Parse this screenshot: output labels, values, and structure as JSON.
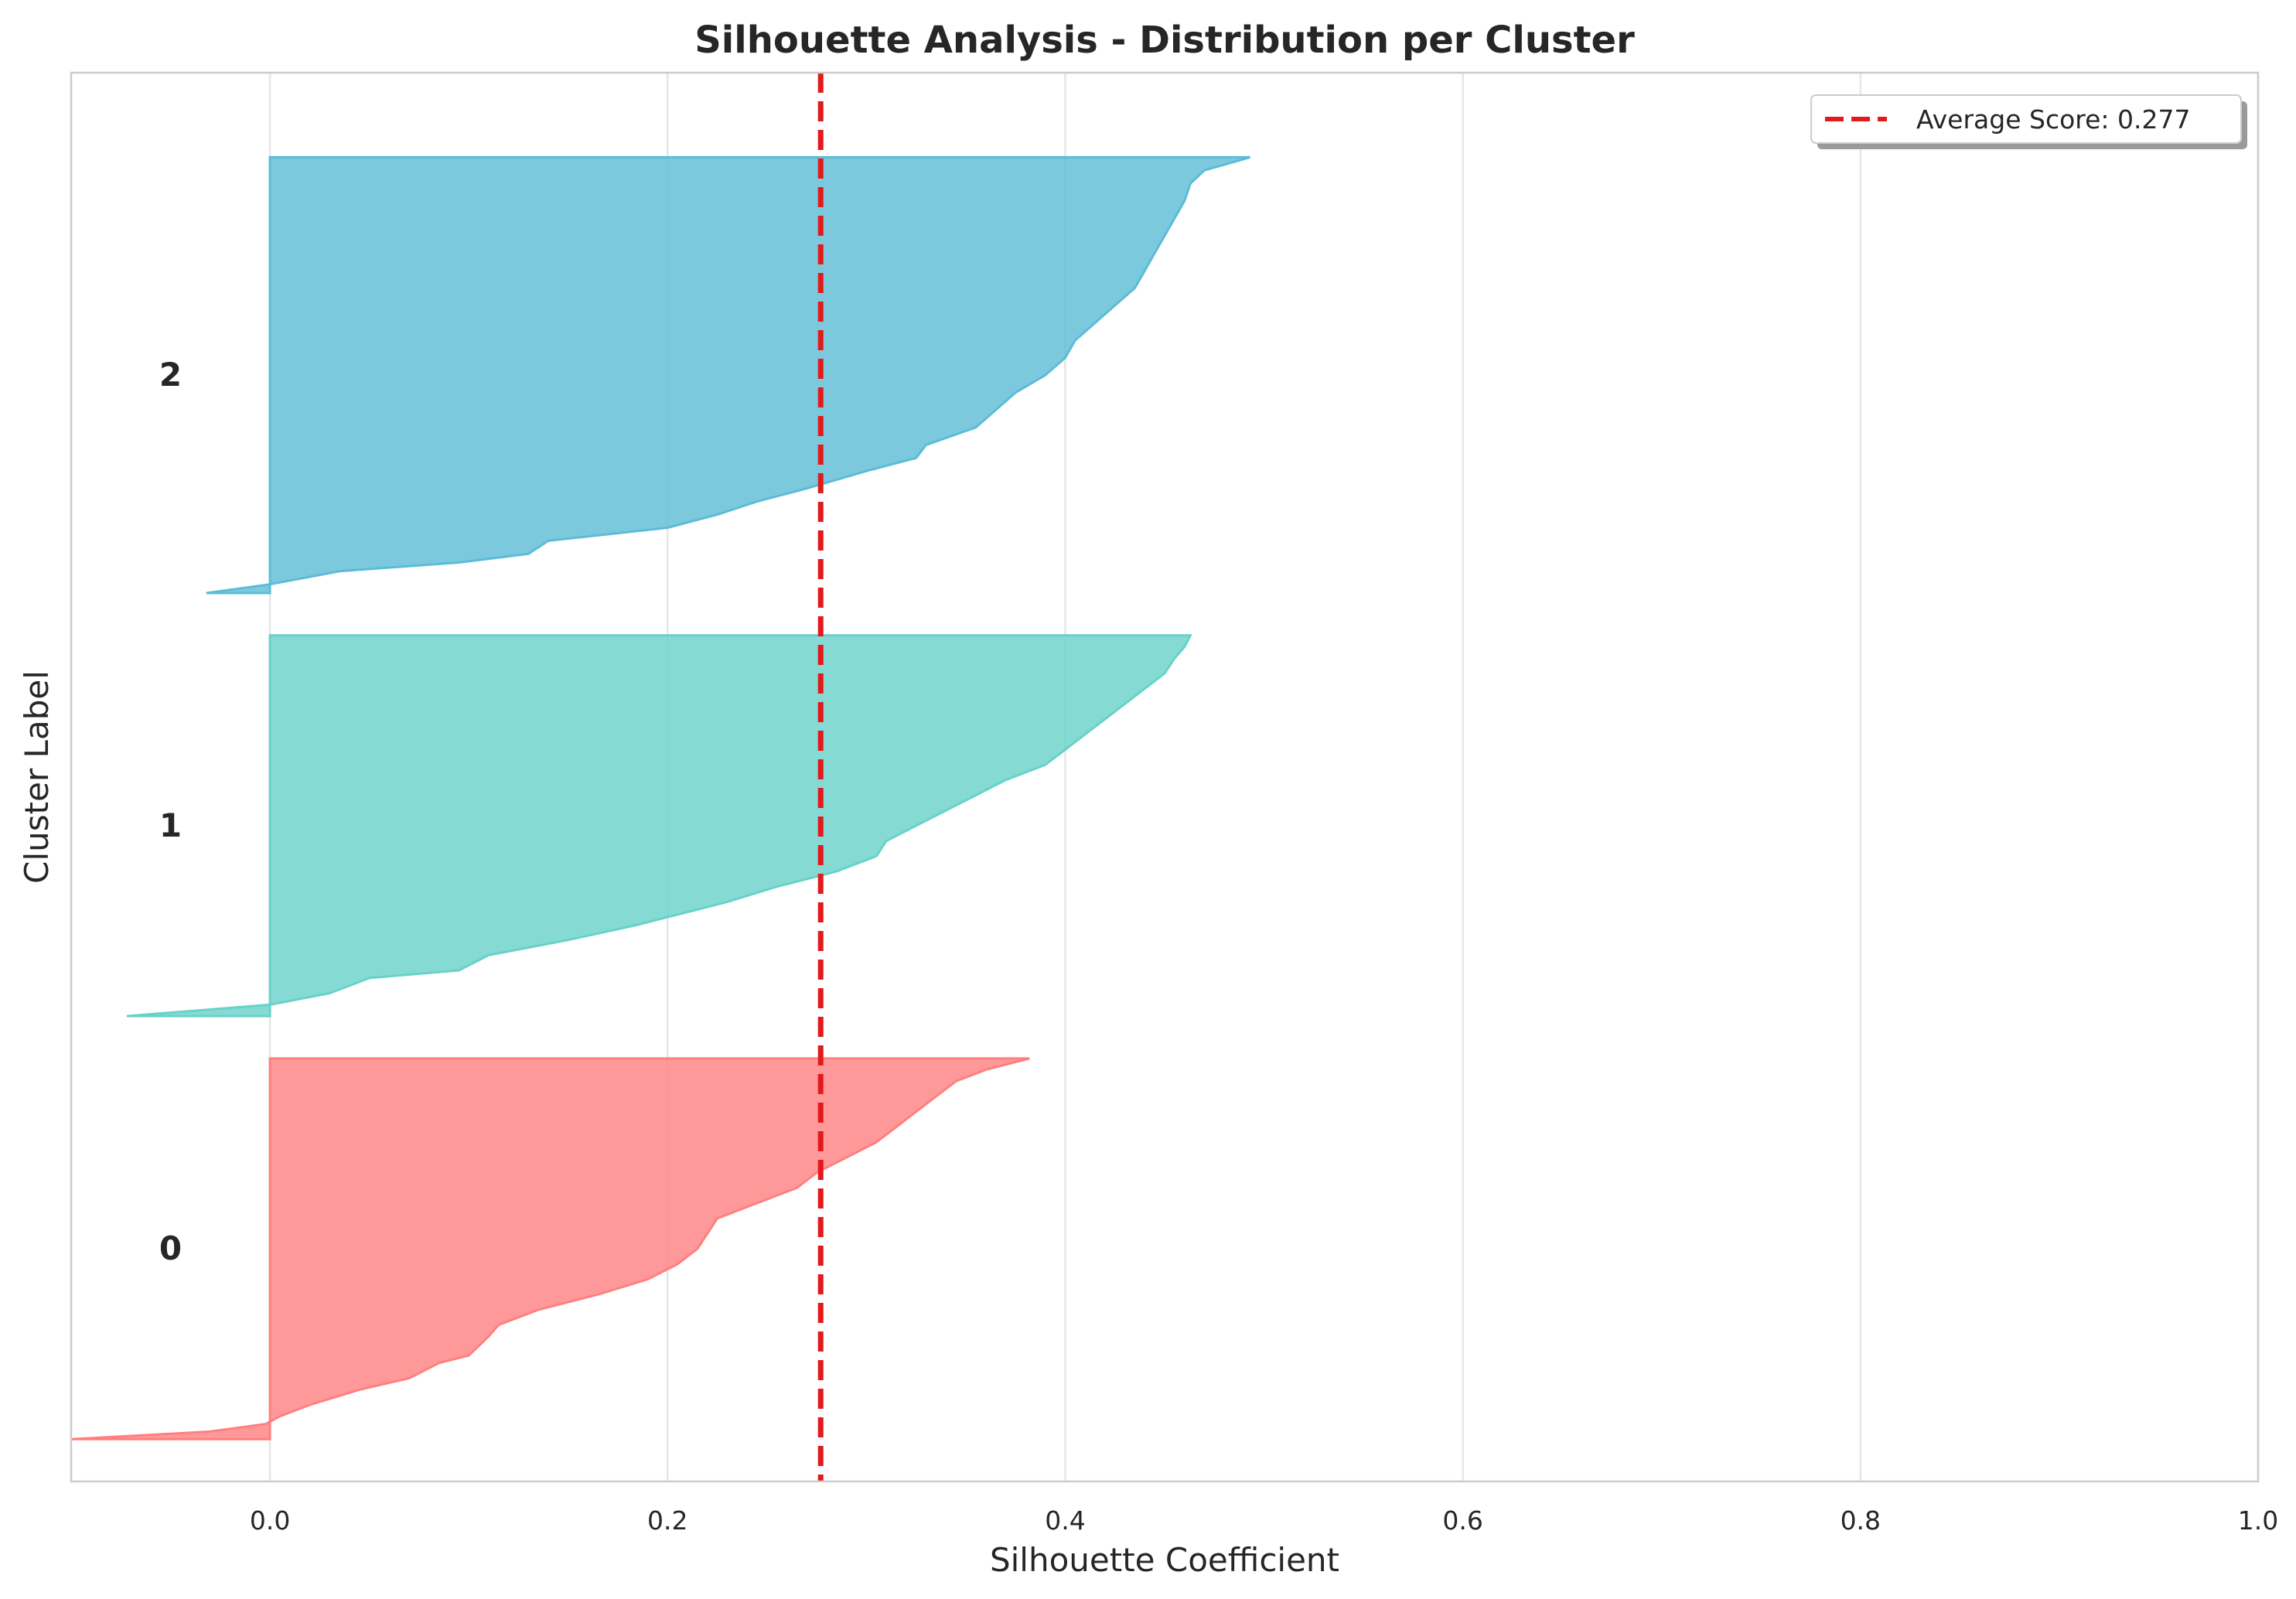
{
  "chart_data": {
    "type": "area",
    "title": "Silhouette Analysis - Distribution per Cluster",
    "xlabel": "Silhouette Coefficient",
    "ylabel": "Cluster Label",
    "xlim": [
      -0.1,
      1.0
    ],
    "xticks": [
      0.0,
      0.2,
      0.4,
      0.6,
      0.8,
      1.0
    ],
    "xtick_labels": [
      "0.0",
      "0.2",
      "0.4",
      "0.6",
      "0.8",
      "1.0"
    ],
    "grid": true,
    "legend_position": "top-right",
    "average_score": 0.277,
    "average_label": "Average Score: 0.277",
    "average_color": "#e31a1c",
    "clusters": [
      {
        "label": "0",
        "color": "#ff7f7f",
        "size": 90,
        "min": -0.1,
        "max": 0.382,
        "profile": [
          [
            0.0,
            -0.1
          ],
          [
            0.02,
            -0.03
          ],
          [
            0.04,
            -0.002
          ],
          [
            0.06,
            0.005
          ],
          [
            0.09,
            0.02
          ],
          [
            0.13,
            0.045
          ],
          [
            0.16,
            0.07
          ],
          [
            0.2,
            0.085
          ],
          [
            0.22,
            0.1
          ],
          [
            0.27,
            0.11
          ],
          [
            0.3,
            0.115
          ],
          [
            0.34,
            0.135
          ],
          [
            0.38,
            0.165
          ],
          [
            0.42,
            0.19
          ],
          [
            0.46,
            0.205
          ],
          [
            0.5,
            0.215
          ],
          [
            0.54,
            0.22
          ],
          [
            0.58,
            0.225
          ],
          [
            0.62,
            0.245
          ],
          [
            0.66,
            0.265
          ],
          [
            0.7,
            0.275
          ],
          [
            0.74,
            0.29
          ],
          [
            0.78,
            0.305
          ],
          [
            0.82,
            0.315
          ],
          [
            0.86,
            0.325
          ],
          [
            0.9,
            0.335
          ],
          [
            0.94,
            0.345
          ],
          [
            0.97,
            0.36
          ],
          [
            1.0,
            0.382
          ]
        ]
      },
      {
        "label": "1",
        "color": "#66d2c9",
        "size": 90,
        "min": -0.072,
        "max": 0.463,
        "profile": [
          [
            0.0,
            -0.072
          ],
          [
            0.03,
            0.0
          ],
          [
            0.06,
            0.03
          ],
          [
            0.1,
            0.05
          ],
          [
            0.12,
            0.095
          ],
          [
            0.16,
            0.11
          ],
          [
            0.2,
            0.15
          ],
          [
            0.24,
            0.185
          ],
          [
            0.26,
            0.2
          ],
          [
            0.3,
            0.23
          ],
          [
            0.34,
            0.255
          ],
          [
            0.38,
            0.285
          ],
          [
            0.42,
            0.305
          ],
          [
            0.46,
            0.31
          ],
          [
            0.5,
            0.325
          ],
          [
            0.54,
            0.34
          ],
          [
            0.58,
            0.355
          ],
          [
            0.62,
            0.37
          ],
          [
            0.66,
            0.39
          ],
          [
            0.7,
            0.4
          ],
          [
            0.74,
            0.41
          ],
          [
            0.78,
            0.42
          ],
          [
            0.82,
            0.43
          ],
          [
            0.86,
            0.44
          ],
          [
            0.9,
            0.45
          ],
          [
            0.94,
            0.455
          ],
          [
            0.97,
            0.46
          ],
          [
            1.0,
            0.463
          ]
        ]
      },
      {
        "label": "2",
        "color": "#5bbcd6",
        "size": 103,
        "min": -0.032,
        "max": 0.493,
        "profile": [
          [
            0.0,
            -0.032
          ],
          [
            0.02,
            0.0
          ],
          [
            0.05,
            0.035
          ],
          [
            0.07,
            0.095
          ],
          [
            0.09,
            0.13
          ],
          [
            0.12,
            0.14
          ],
          [
            0.15,
            0.2
          ],
          [
            0.18,
            0.225
          ],
          [
            0.21,
            0.245
          ],
          [
            0.24,
            0.27
          ],
          [
            0.28,
            0.3
          ],
          [
            0.31,
            0.325
          ],
          [
            0.34,
            0.33
          ],
          [
            0.38,
            0.355
          ],
          [
            0.42,
            0.365
          ],
          [
            0.46,
            0.375
          ],
          [
            0.5,
            0.39
          ],
          [
            0.54,
            0.4
          ],
          [
            0.58,
            0.405
          ],
          [
            0.62,
            0.415
          ],
          [
            0.66,
            0.425
          ],
          [
            0.7,
            0.435
          ],
          [
            0.74,
            0.44
          ],
          [
            0.78,
            0.445
          ],
          [
            0.82,
            0.45
          ],
          [
            0.86,
            0.455
          ],
          [
            0.9,
            0.46
          ],
          [
            0.94,
            0.463
          ],
          [
            0.97,
            0.47
          ],
          [
            1.0,
            0.493
          ]
        ]
      }
    ]
  }
}
